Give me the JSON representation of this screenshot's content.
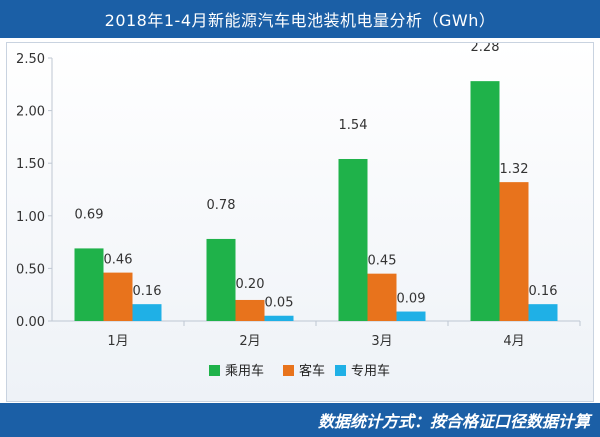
{
  "title": "2018年1-4月新能源汽车电池装机电量分析（GWh）",
  "footer_note": "数据统计方式：按合格证口径数据计算",
  "chart_data": {
    "type": "bar",
    "title": "2018年1-4月新能源汽车电池装机电量分析（GWh）",
    "categories": [
      "1月",
      "2月",
      "3月",
      "4月"
    ],
    "series": [
      {
        "name": "乘用车",
        "color": "#1fb24a",
        "values": [
          0.69,
          0.78,
          1.54,
          2.28
        ],
        "labels": [
          "0.69",
          "0.78",
          "1.54",
          "2.28"
        ]
      },
      {
        "name": "客车",
        "color": "#e8731c",
        "values": [
          0.46,
          0.2,
          0.45,
          1.32
        ],
        "labels": [
          "0.46",
          "0.20",
          "0.45",
          "1.32"
        ]
      },
      {
        "name": "专用车",
        "color": "#1fb0e6",
        "values": [
          0.16,
          0.05,
          0.09,
          0.16
        ],
        "labels": [
          "0.16",
          "0.05",
          "0.09",
          "0.16"
        ]
      }
    ],
    "y_ticks": [
      "0.00",
      "0.50",
      "1.00",
      "1.50",
      "2.00",
      "2.50"
    ],
    "ylim": [
      0,
      2.5
    ],
    "legend_position": "bottom",
    "grid": false
  }
}
